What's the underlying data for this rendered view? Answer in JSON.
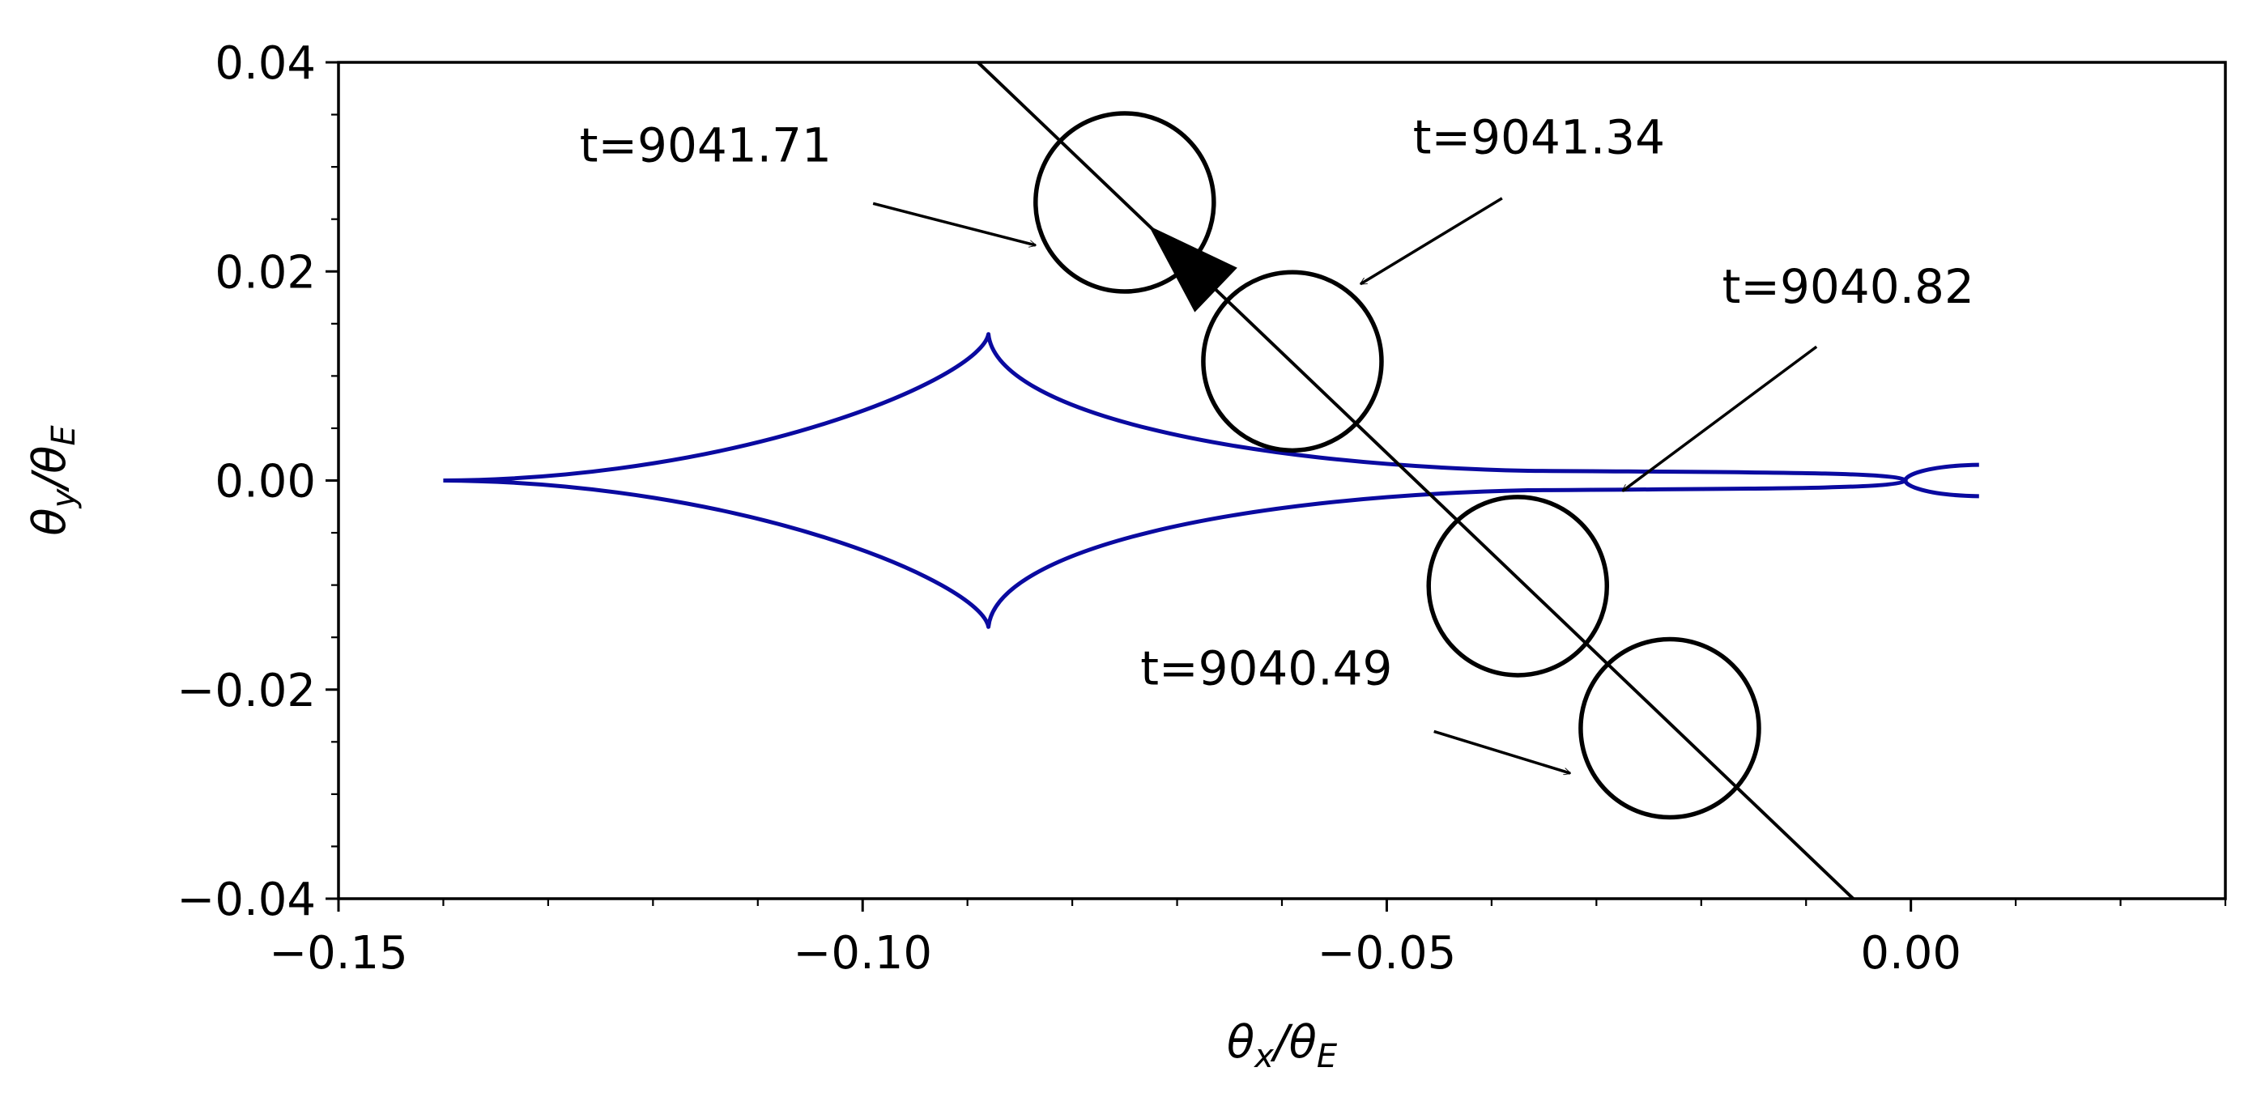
{
  "chart_data": {
    "type": "line",
    "xlabel": {
      "base": "θ",
      "sub": "x",
      "sep": "/",
      "base2": "θ",
      "sub2": "E"
    },
    "ylabel": {
      "base": "θ",
      "sub": "y",
      "sep": "/",
      "base2": "θ",
      "sub2": "E"
    },
    "xlim": [
      -0.15,
      0.03
    ],
    "ylim": [
      -0.04,
      0.04
    ],
    "x_ticks": [
      {
        "value": -0.15,
        "label": "−0.15"
      },
      {
        "value": -0.1,
        "label": "−0.10"
      },
      {
        "value": -0.05,
        "label": "−0.05"
      },
      {
        "value": 0.0,
        "label": "0.00"
      }
    ],
    "x_minor_step": 0.01,
    "y_ticks": [
      {
        "value": -0.04,
        "label": "−0.04"
      },
      {
        "value": -0.02,
        "label": "−0.02"
      },
      {
        "value": 0.0,
        "label": "0.00"
      },
      {
        "value": 0.02,
        "label": "0.02"
      },
      {
        "value": 0.04,
        "label": "0.04"
      }
    ],
    "y_minor_step": 0.005,
    "grid": false,
    "caustic": {
      "color": "#0a0aa0",
      "cusp_left": [
        -0.14,
        0.0
      ],
      "cusp_top": [
        -0.088,
        0.014
      ],
      "cusp_bottom": [
        -0.088,
        -0.014
      ],
      "right_end_top": [
        0.0065,
        0.0015
      ],
      "right_end_bottom": [
        0.0065,
        -0.0015
      ],
      "right_fold_tip": [
        -0.0005,
        0.0
      ]
    },
    "trajectory": {
      "color": "#000000",
      "points": [
        [
          -0.089,
          0.04
        ],
        [
          -0.0055,
          -0.04
        ]
      ],
      "arrow_at": [
        -0.0695,
        0.0213
      ]
    },
    "source_radius": 0.0085,
    "sources": [
      {
        "t_label": "t=9041.71",
        "center": [
          -0.075,
          0.0266
        ],
        "text_at": [
          -0.127,
          0.0305
        ],
        "arrow_from": [
          -0.099,
          0.0265
        ],
        "arrow_to": [
          -0.0835,
          0.0225
        ]
      },
      {
        "t_label": "t=9041.34",
        "center": [
          -0.059,
          0.0114
        ],
        "text_at": [
          -0.0475,
          0.0313
        ],
        "arrow_from": [
          -0.039,
          0.027
        ],
        "arrow_to": [
          -0.0525,
          0.0188
        ]
      },
      {
        "t_label": "t=9040.82",
        "center": [
          -0.0375,
          -0.0101
        ],
        "text_at": [
          -0.018,
          0.017
        ],
        "arrow_from": [
          -0.009,
          0.0128
        ],
        "arrow_to": [
          -0.0275,
          -0.001
        ]
      },
      {
        "t_label": "t=9040.49",
        "center": [
          -0.023,
          -0.0237
        ],
        "text_at": [
          -0.0735,
          -0.0195
        ],
        "arrow_from": [
          -0.0455,
          -0.024
        ],
        "arrow_to": [
          -0.0325,
          -0.028
        ]
      }
    ]
  }
}
